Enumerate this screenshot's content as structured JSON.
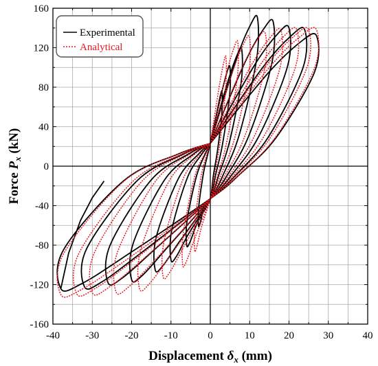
{
  "chart_data": {
    "type": "line",
    "xlabel": "Displacement δx (mm)",
    "xlabel_parts": {
      "main": "Displacement ",
      "symbol": "δ",
      "subscript": "x",
      "unit": " (mm)"
    },
    "ylabel": "Force Px (kN)",
    "ylabel_parts": {
      "main": "Force ",
      "symbol": "P",
      "subscript": "x",
      "unit": " (kN)"
    },
    "xlim": [
      -40,
      40
    ],
    "ylim": [
      -160,
      160
    ],
    "xticks": [
      -40,
      -30,
      -20,
      -10,
      0,
      10,
      20,
      30,
      40
    ],
    "yticks": [
      -160,
      -120,
      -80,
      -40,
      0,
      40,
      80,
      120,
      160
    ],
    "grid": true,
    "legend_position": "top-left",
    "colors": {
      "experimental": "#000000",
      "analytical": "#e8161e",
      "grid": "#a8a8a8"
    },
    "series": [
      {
        "name": "Experimental",
        "style": "solid",
        "loops": [
          {
            "peak": [
              3,
              75
            ],
            "trough": [
              -3,
              -60
            ]
          },
          {
            "peak": [
              5,
              100
            ],
            "trough": [
              -6,
              -80
            ]
          },
          {
            "peak": [
              8,
              118
            ],
            "trough": [
              -10,
              -95
            ]
          },
          {
            "peak": [
              12,
              150
            ],
            "trough": [
              -14,
              -105
            ]
          },
          {
            "peak": [
              16,
              146
            ],
            "trough": [
              -20,
              -115
            ]
          },
          {
            "peak": [
              20,
              140
            ],
            "trough": [
              -26,
              -118
            ]
          },
          {
            "peak": [
              24,
              138
            ],
            "trough": [
              -32,
              -122
            ]
          },
          {
            "peak": [
              27,
              132
            ],
            "trough": [
              -38,
              -124
            ]
          }
        ],
        "tail": [
          [
            -38,
            -124
          ],
          [
            -36,
            -88
          ],
          [
            -33,
            -55
          ],
          [
            -30,
            -32
          ],
          [
            -27,
            -15
          ]
        ]
      },
      {
        "name": "Analytical",
        "style": "dotted",
        "loops": [
          {
            "peak": [
              4,
              110
            ],
            "trough": [
              -4,
              -85
            ]
          },
          {
            "peak": [
              7,
              125
            ],
            "trough": [
              -7,
              -100
            ]
          },
          {
            "peak": [
              10,
              130
            ],
            "trough": [
              -12,
              -112
            ]
          },
          {
            "peak": [
              14,
              134
            ],
            "trough": [
              -18,
              -124
            ]
          },
          {
            "peak": [
              18,
              137
            ],
            "trough": [
              -24,
              -127
            ]
          },
          {
            "peak": [
              22,
              138
            ],
            "trough": [
              -30,
              -128
            ]
          },
          {
            "peak": [
              25,
              138
            ],
            "trough": [
              -34,
              -129
            ]
          },
          {
            "peak": [
              27,
              138
            ],
            "trough": [
              -38,
              -130
            ]
          }
        ]
      }
    ]
  }
}
